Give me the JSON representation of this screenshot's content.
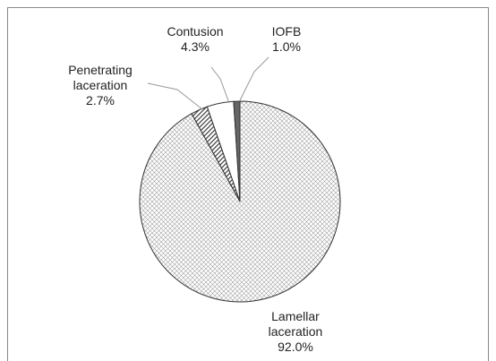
{
  "chart_data": {
    "type": "pie",
    "categories": [
      "Lamellar laceration",
      "Penetrating laceration",
      "Contusion",
      "IOFB"
    ],
    "values": [
      92.0,
      2.7,
      4.3,
      1.0
    ],
    "value_labels": [
      "92.0%",
      "2.7%",
      "4.3%",
      "1.0%"
    ],
    "colors": [
      "#a0a0a0",
      "#404040",
      "#ffffff",
      "#666666"
    ],
    "fills": [
      "crosshatch",
      "diagonal",
      "solid",
      "solid"
    ]
  }
}
